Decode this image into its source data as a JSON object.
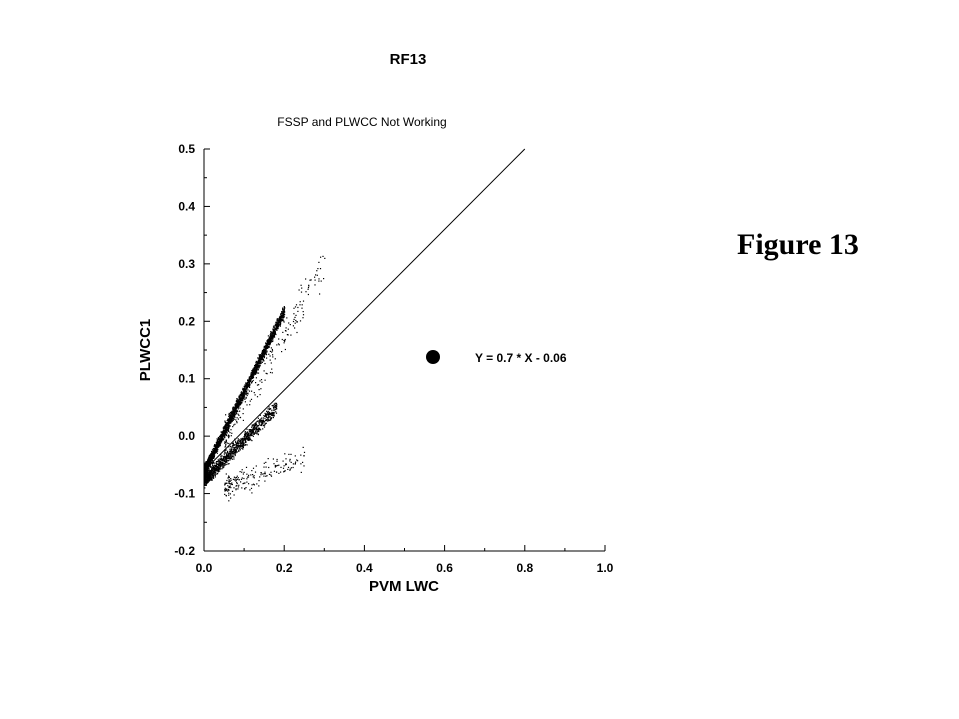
{
  "figure_label": "Figure 13",
  "chart_data": {
    "type": "scatter",
    "title": "RF13",
    "subtitle": "FSSP and PLWCC Not Working",
    "xlabel": "PVM LWC",
    "ylabel": "PLWCC1",
    "xlim": [
      0.0,
      1.0
    ],
    "ylim": [
      -0.2,
      0.5
    ],
    "x_ticks": [
      "0.0",
      "0.2",
      "0.4",
      "0.6",
      "0.8",
      "1.0"
    ],
    "y_ticks": [
      "-0.2",
      "-0.1",
      "0.0",
      "0.1",
      "0.2",
      "0.3",
      "0.4",
      "0.5"
    ],
    "grid": false,
    "fit_line": {
      "slope": 0.7,
      "intercept": -0.06,
      "x_range": [
        0.0,
        0.8
      ]
    },
    "legend": {
      "label": "Y = 0.7 * X - 0.06",
      "position": "right",
      "marker": "filled-circle"
    },
    "scatter_clusters": [
      {
        "x_range": [
          0.0,
          0.2
        ],
        "slope": 1.4,
        "intercept": -0.06,
        "spread": 0.015,
        "points": 2200
      },
      {
        "x_range": [
          0.0,
          0.18
        ],
        "slope": 0.7,
        "intercept": -0.075,
        "spread": 0.018,
        "points": 1200
      },
      {
        "x_range": [
          0.05,
          0.3
        ],
        "slope": 1.2,
        "intercept": -0.06,
        "spread": 0.05,
        "points": 250
      },
      {
        "x_range": [
          0.05,
          0.25
        ],
        "slope": 0.25,
        "intercept": -0.1,
        "spread": 0.03,
        "points": 200
      }
    ]
  }
}
